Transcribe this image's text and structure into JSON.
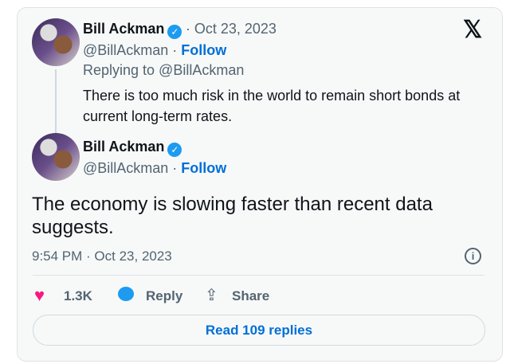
{
  "parent": {
    "name": "Bill Ackman",
    "date": "Oct 23, 2023",
    "handle": "@BillAckman",
    "follow": "Follow",
    "replying": "Replying to @BillAckman",
    "text1": "There is too much risk in the world to remain short bonds at",
    "text2": "current long-term rates."
  },
  "tweet": {
    "name": "Bill Ackman",
    "handle": "@BillAckman",
    "follow": "Follow",
    "text1": "The economy is slowing faster than recent data",
    "text2": "suggests.",
    "timestamp": "9:54 PM · Oct 23, 2023"
  },
  "actions": {
    "likes": "1.3K",
    "reply": "Reply",
    "share": "Share",
    "read_replies": "Read 109 replies"
  },
  "colors": {
    "accent": "#006fd6",
    "heart": "#f91880",
    "reply_icon": "#1d9bf0",
    "verified": "#1d9bf0"
  }
}
